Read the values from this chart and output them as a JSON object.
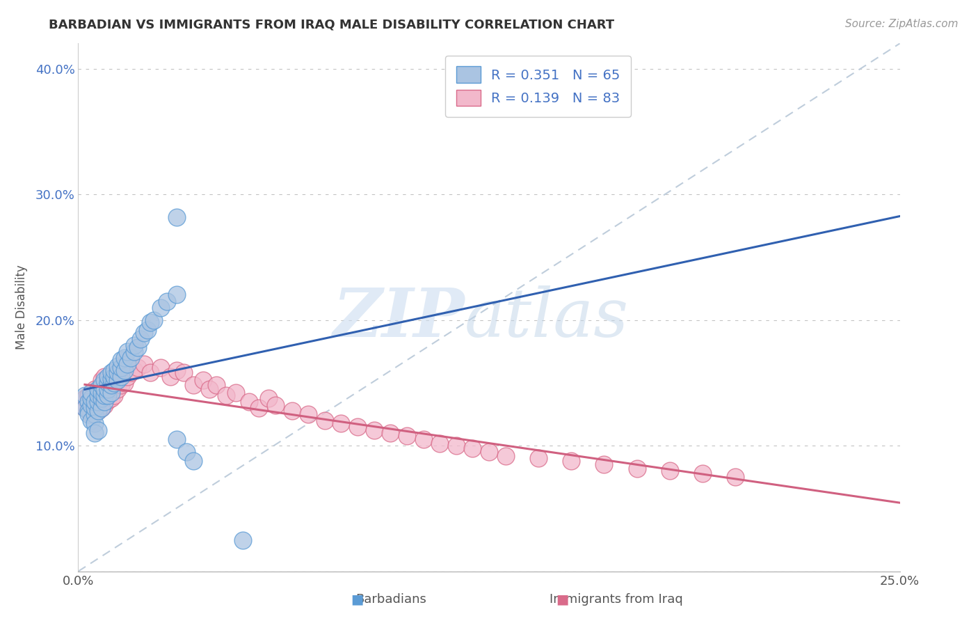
{
  "title": "BARBADIAN VS IMMIGRANTS FROM IRAQ MALE DISABILITY CORRELATION CHART",
  "source": "Source: ZipAtlas.com",
  "ylabel": "Male Disability",
  "xlim": [
    0.0,
    0.25
  ],
  "ylim": [
    0.0,
    0.42
  ],
  "barbadian_color": "#aac4e2",
  "iraq_color": "#f2b8cb",
  "barbadian_edge": "#5b9bd5",
  "iraq_edge": "#d96b8a",
  "trendline_barbadian_color": "#3060b0",
  "trendline_iraq_color": "#d06080",
  "diagonal_color": "#b8c8d8",
  "R_barbadian": 0.351,
  "N_barbadian": 65,
  "R_iraq": 0.139,
  "N_iraq": 83,
  "legend_text_color": "#4472c4",
  "barbadian_x": [
    0.002,
    0.002,
    0.003,
    0.003,
    0.003,
    0.004,
    0.004,
    0.004,
    0.004,
    0.005,
    0.005,
    0.005,
    0.005,
    0.005,
    0.006,
    0.006,
    0.006,
    0.006,
    0.006,
    0.007,
    0.007,
    0.007,
    0.007,
    0.008,
    0.008,
    0.008,
    0.008,
    0.009,
    0.009,
    0.009,
    0.009,
    0.01,
    0.01,
    0.01,
    0.01,
    0.011,
    0.011,
    0.011,
    0.012,
    0.012,
    0.012,
    0.013,
    0.013,
    0.013,
    0.014,
    0.014,
    0.015,
    0.015,
    0.016,
    0.017,
    0.017,
    0.018,
    0.019,
    0.02,
    0.021,
    0.022,
    0.023,
    0.025,
    0.027,
    0.03,
    0.03,
    0.033,
    0.035,
    0.05,
    0.03
  ],
  "barbadian_y": [
    0.14,
    0.13,
    0.135,
    0.128,
    0.125,
    0.132,
    0.138,
    0.142,
    0.12,
    0.125,
    0.13,
    0.135,
    0.118,
    0.11,
    0.128,
    0.135,
    0.14,
    0.145,
    0.112,
    0.13,
    0.138,
    0.142,
    0.148,
    0.135,
    0.14,
    0.145,
    0.152,
    0.14,
    0.145,
    0.15,
    0.155,
    0.142,
    0.148,
    0.153,
    0.158,
    0.15,
    0.155,
    0.16,
    0.152,
    0.158,
    0.163,
    0.155,
    0.162,
    0.168,
    0.16,
    0.17,
    0.165,
    0.175,
    0.17,
    0.175,
    0.18,
    0.178,
    0.185,
    0.19,
    0.192,
    0.198,
    0.2,
    0.21,
    0.215,
    0.22,
    0.105,
    0.095,
    0.088,
    0.025,
    0.282
  ],
  "iraq_x": [
    0.002,
    0.002,
    0.003,
    0.003,
    0.003,
    0.004,
    0.004,
    0.004,
    0.004,
    0.005,
    0.005,
    0.005,
    0.005,
    0.006,
    0.006,
    0.006,
    0.006,
    0.007,
    0.007,
    0.007,
    0.007,
    0.007,
    0.008,
    0.008,
    0.008,
    0.008,
    0.008,
    0.009,
    0.009,
    0.009,
    0.009,
    0.01,
    0.01,
    0.01,
    0.011,
    0.011,
    0.011,
    0.012,
    0.012,
    0.013,
    0.013,
    0.014,
    0.015,
    0.016,
    0.017,
    0.018,
    0.02,
    0.022,
    0.025,
    0.028,
    0.03,
    0.032,
    0.035,
    0.038,
    0.04,
    0.042,
    0.045,
    0.048,
    0.052,
    0.055,
    0.058,
    0.06,
    0.065,
    0.07,
    0.075,
    0.08,
    0.085,
    0.09,
    0.095,
    0.1,
    0.105,
    0.11,
    0.115,
    0.12,
    0.125,
    0.13,
    0.14,
    0.15,
    0.16,
    0.17,
    0.18,
    0.19,
    0.2
  ],
  "iraq_y": [
    0.138,
    0.13,
    0.135,
    0.14,
    0.128,
    0.132,
    0.138,
    0.142,
    0.125,
    0.13,
    0.135,
    0.14,
    0.145,
    0.128,
    0.135,
    0.14,
    0.145,
    0.13,
    0.138,
    0.142,
    0.148,
    0.152,
    0.132,
    0.138,
    0.145,
    0.148,
    0.155,
    0.136,
    0.142,
    0.148,
    0.152,
    0.138,
    0.145,
    0.15,
    0.14,
    0.148,
    0.155,
    0.145,
    0.152,
    0.148,
    0.155,
    0.15,
    0.155,
    0.158,
    0.16,
    0.162,
    0.165,
    0.158,
    0.162,
    0.155,
    0.16,
    0.158,
    0.148,
    0.152,
    0.145,
    0.148,
    0.14,
    0.142,
    0.135,
    0.13,
    0.138,
    0.132,
    0.128,
    0.125,
    0.12,
    0.118,
    0.115,
    0.112,
    0.11,
    0.108,
    0.105,
    0.102,
    0.1,
    0.098,
    0.095,
    0.092,
    0.09,
    0.088,
    0.085,
    0.082,
    0.08,
    0.078,
    0.075
  ]
}
